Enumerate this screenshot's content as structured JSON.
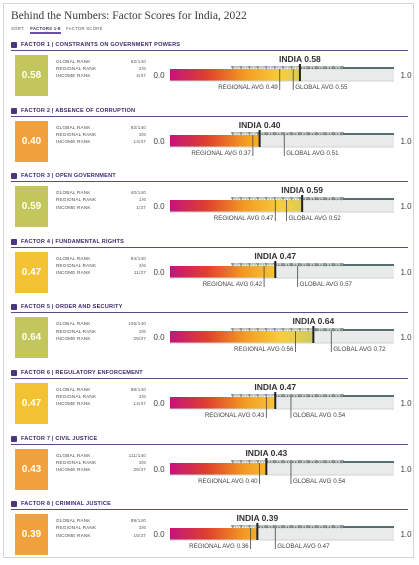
{
  "page": {
    "title": "Behind the Numbers: Factor Scores for India, 2022",
    "sort_label": "SORT:",
    "sort_tabs": [
      "FACTORS 1-8",
      "FACTOR SCORE"
    ],
    "sort_active": 0
  },
  "labels": {
    "global_rank": "GLOBAL RANK",
    "regional_rank": "REGIONAL RANK",
    "income_rank": "INCOME RANK",
    "axis_min": "0.0",
    "axis_max": "1.0"
  },
  "colors": {
    "title_purple": "#3d2a6b",
    "score_green_light": "#c2c65c",
    "score_yellow": "#f2c233",
    "score_orange": "#f0a13d",
    "gradient": [
      "#c4147c",
      "#e0402c",
      "#f39b22",
      "#f6cf3c",
      "#c3c96a",
      "#7fbca0",
      "#2f6e78"
    ],
    "axis_dark": "#1e3f44"
  },
  "chart_data": [
    {
      "type": "bar",
      "factor": "FACTOR 1 | CONSTRAINTS ON GOVERNMENT POWERS",
      "icon": "balance-scale-icon",
      "score_display": "0.58",
      "score_color": "#c2c65c",
      "ranks": {
        "global": "52/140",
        "regional": "2/6",
        "income": "4/37"
      },
      "india_label": "INDIA 0.58",
      "india": 0.58,
      "regional_label": "REGIONAL AVG 0.49",
      "regional_avg": 0.49,
      "global_label": "GLOBAL AVG 0.55",
      "global_avg": 0.55,
      "xlim": [
        0,
        1
      ]
    },
    {
      "type": "bar",
      "factor": "FACTOR 2 | ABSENCE OF CORRUPTION",
      "icon": "money-bag-icon",
      "score_display": "0.40",
      "score_color": "#f0a13d",
      "ranks": {
        "global": "92/140",
        "regional": "3/6",
        "income": "14/37"
      },
      "india_label": "INDIA 0.40",
      "india": 0.4,
      "regional_label": "REGIONAL AVG 0.37",
      "regional_avg": 0.37,
      "global_label": "GLOBAL AVG 0.51",
      "global_avg": 0.51,
      "xlim": [
        0,
        1
      ]
    },
    {
      "type": "bar",
      "factor": "FACTOR 3 | OPEN GOVERNMENT",
      "icon": "open-door-icon",
      "score_display": "0.59",
      "score_color": "#c2c65c",
      "ranks": {
        "global": "40/140",
        "regional": "1/6",
        "income": "1/37"
      },
      "india_label": "INDIA 0.59",
      "india": 0.59,
      "regional_label": "REGIONAL AVG 0.47",
      "regional_avg": 0.47,
      "global_label": "GLOBAL AVG 0.52",
      "global_avg": 0.52,
      "xlim": [
        0,
        1
      ]
    },
    {
      "type": "bar",
      "factor": "FACTOR 4 | FUNDAMENTAL RIGHTS",
      "icon": "people-icon",
      "score_display": "0.47",
      "score_color": "#f2c233",
      "ranks": {
        "global": "94/140",
        "regional": "3/6",
        "income": "11/37"
      },
      "india_label": "INDIA 0.47",
      "india": 0.47,
      "regional_label": "REGIONAL AVG 0.42",
      "regional_avg": 0.42,
      "global_label": "GLOBAL AVG 0.57",
      "global_avg": 0.57,
      "xlim": [
        0,
        1
      ]
    },
    {
      "type": "bar",
      "factor": "FACTOR 5 | ORDER AND SECURITY",
      "icon": "padlock-icon",
      "score_display": "0.64",
      "score_color": "#c2c65c",
      "ranks": {
        "global": "105/140",
        "regional": "3/6",
        "income": "25/37"
      },
      "india_label": "INDIA 0.64",
      "india": 0.64,
      "regional_label": "REGIONAL AVG 0.56",
      "regional_avg": 0.56,
      "global_label": "GLOBAL AVG 0.72",
      "global_avg": 0.72,
      "xlim": [
        0,
        1
      ]
    },
    {
      "type": "bar",
      "factor": "FACTOR 6 | REGULATORY ENFORCEMENT",
      "icon": "document-icon",
      "score_display": "0.47",
      "score_color": "#f2c233",
      "ranks": {
        "global": "88/140",
        "regional": "3/6",
        "income": "14/37"
      },
      "india_label": "INDIA 0.47",
      "india": 0.47,
      "regional_label": "REGIONAL AVG 0.43",
      "regional_avg": 0.43,
      "global_label": "GLOBAL AVG 0.54",
      "global_avg": 0.54,
      "xlim": [
        0,
        1
      ]
    },
    {
      "type": "bar",
      "factor": "FACTOR 7 | CIVIL JUSTICE",
      "icon": "scales-icon",
      "score_display": "0.43",
      "score_color": "#f0a13d",
      "ranks": {
        "global": "111/140",
        "regional": "3/6",
        "income": "26/37"
      },
      "india_label": "INDIA 0.43",
      "india": 0.43,
      "regional_label": "REGIONAL AVG 0.40",
      "regional_avg": 0.4,
      "global_label": "GLOBAL AVG 0.54",
      "global_avg": 0.54,
      "xlim": [
        0,
        1
      ]
    },
    {
      "type": "bar",
      "factor": "FACTOR 8 | CRIMINAL JUSTICE",
      "icon": "handcuffs-icon",
      "score_display": "0.39",
      "score_color": "#f0a13d",
      "ranks": {
        "global": "89/140",
        "regional": "3/6",
        "income": "15/37"
      },
      "india_label": "INDIA 0.39",
      "india": 0.39,
      "regional_label": "REGIONAL AVG 0.36",
      "regional_avg": 0.36,
      "global_label": "GLOBAL AVG 0.47",
      "global_avg": 0.47,
      "xlim": [
        0,
        1
      ]
    }
  ]
}
